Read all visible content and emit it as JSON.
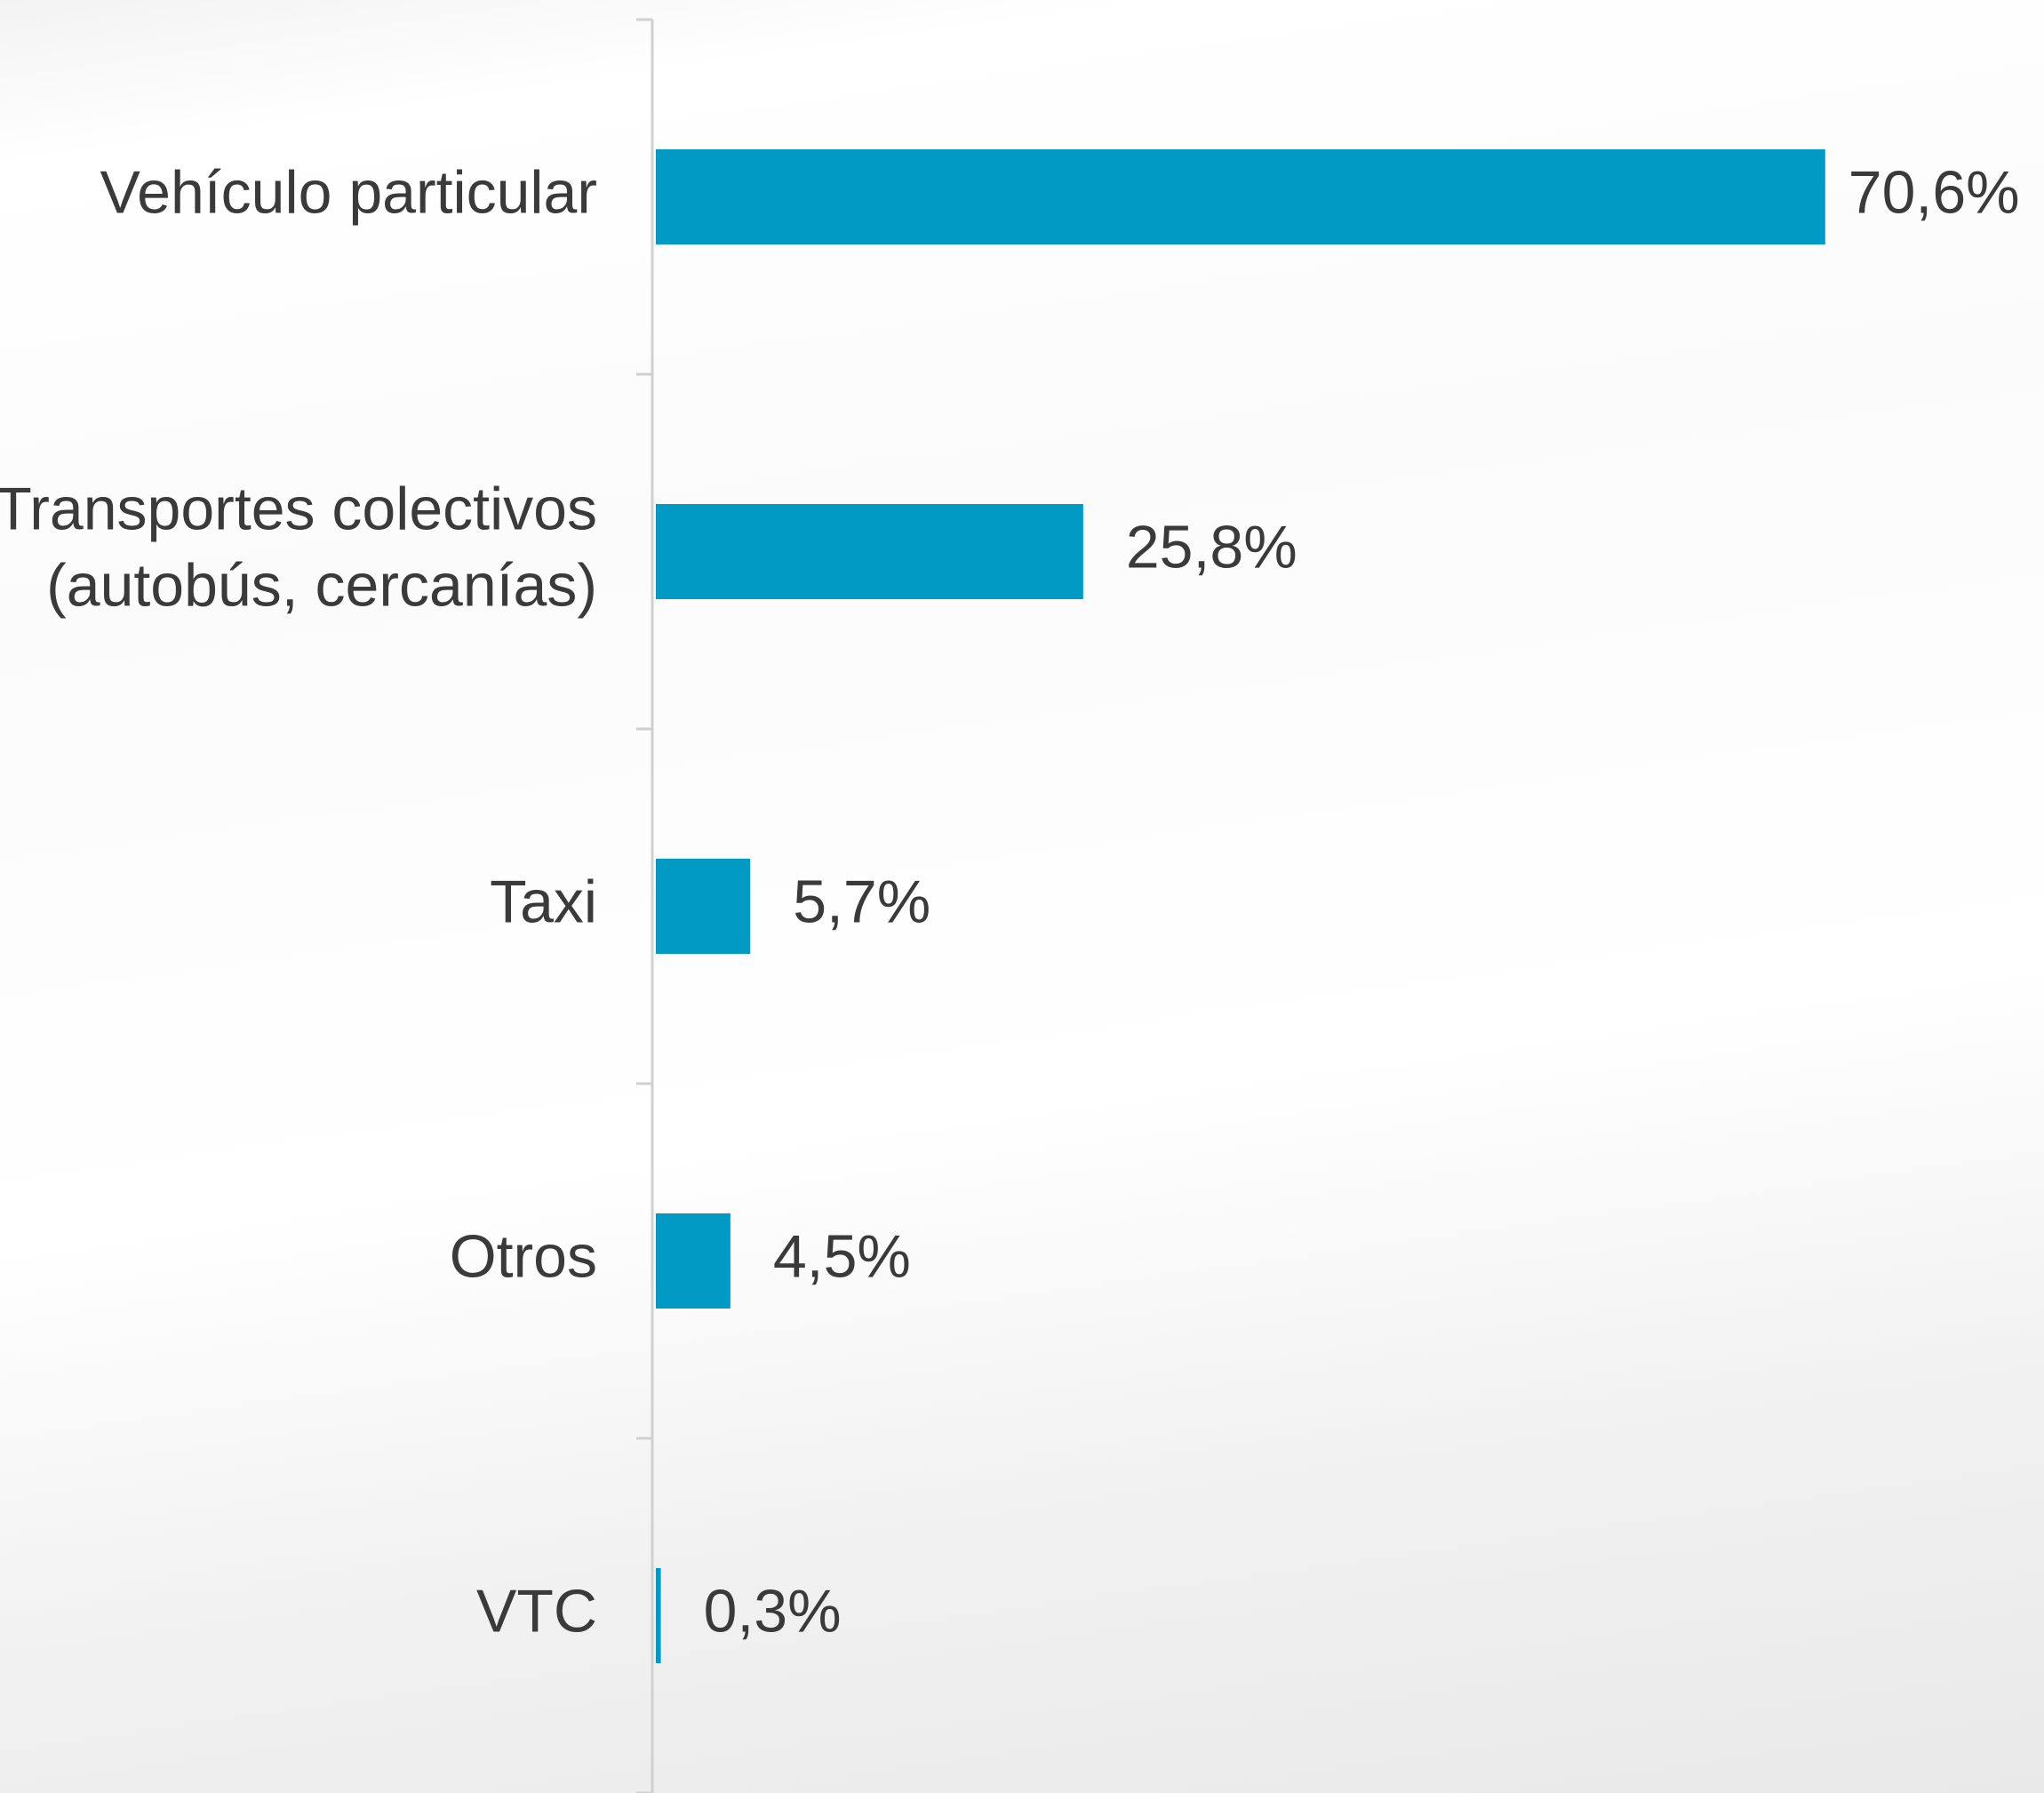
{
  "chart_data": {
    "type": "barh",
    "categories": [
      "Vehículo particular",
      "Transportes colectivos\n(autobús, cercanías)",
      "Taxi",
      "Otros",
      "VTC"
    ],
    "values": [
      70.6,
      25.8,
      5.7,
      4.5,
      0.3
    ],
    "value_labels": [
      "70,6%",
      "25,8%",
      "5,7%",
      "4,5%",
      "0,3%"
    ],
    "color": "#009ac4",
    "xlim": [
      0,
      80
    ]
  }
}
